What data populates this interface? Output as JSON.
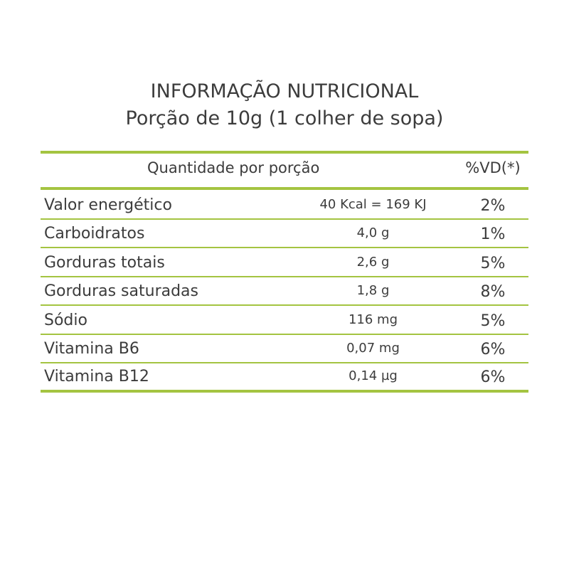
{
  "title": {
    "line1": "INFORMAÇÃO NUTRICIONAL",
    "line2": "Porção de 10g (1 colher de sopa)"
  },
  "table": {
    "header": {
      "quantity": "Quantidade por porção",
      "vd": "%VD(*)"
    },
    "rows": [
      {
        "name": "Valor energético",
        "quantity": "40 Kcal = 169 KJ",
        "vd": "2%"
      },
      {
        "name": "Carboidratos",
        "quantity": "4,0 g",
        "vd": "1%"
      },
      {
        "name": "Gorduras totais",
        "quantity": "2,6 g",
        "vd": "5%"
      },
      {
        "name": "Gorduras saturadas",
        "quantity": "1,8 g",
        "vd": "8%"
      },
      {
        "name": "Sódio",
        "quantity": "116 mg",
        "vd": "5%"
      },
      {
        "name": "Vitamina B6",
        "quantity": "0,07 mg",
        "vd": "6%"
      },
      {
        "name": "Vitamina B12",
        "quantity": "0,14 µg",
        "vd": "6%"
      }
    ]
  },
  "colors": {
    "rule": "#a4c441",
    "text": "#3c3c3c",
    "background": "#ffffff"
  }
}
